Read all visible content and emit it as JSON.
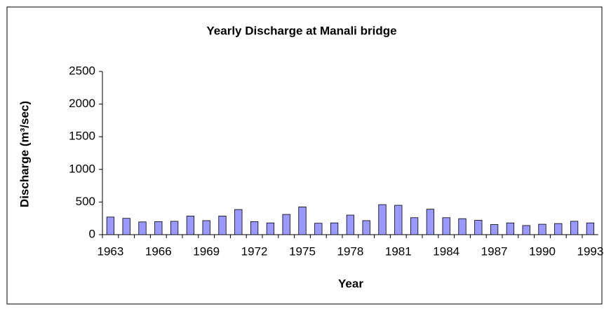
{
  "chart_data": {
    "type": "bar",
    "title": "Yearly Discharge at Manali bridge",
    "xlabel": "Year",
    "ylabel": "Discharge (m³/sec)",
    "categories": [
      "1963",
      null,
      null,
      "1966",
      null,
      null,
      "1969",
      null,
      null,
      "1972",
      null,
      null,
      "1975",
      null,
      null,
      "1978",
      null,
      null,
      "1981",
      null,
      null,
      "1984",
      null,
      null,
      "1987",
      null,
      null,
      "1990",
      null,
      null,
      "1993"
    ],
    "values": [
      270,
      250,
      195,
      200,
      205,
      285,
      215,
      285,
      385,
      200,
      180,
      310,
      425,
      175,
      180,
      300,
      215,
      460,
      450,
      260,
      390,
      260,
      245,
      220,
      155,
      180,
      140,
      160,
      170,
      205,
      180
    ],
    "color": "#9999ff",
    "ylim": [
      0,
      2500
    ],
    "yticks": [
      0,
      500,
      1000,
      1500,
      2000,
      2500
    ],
    "grid": false
  }
}
